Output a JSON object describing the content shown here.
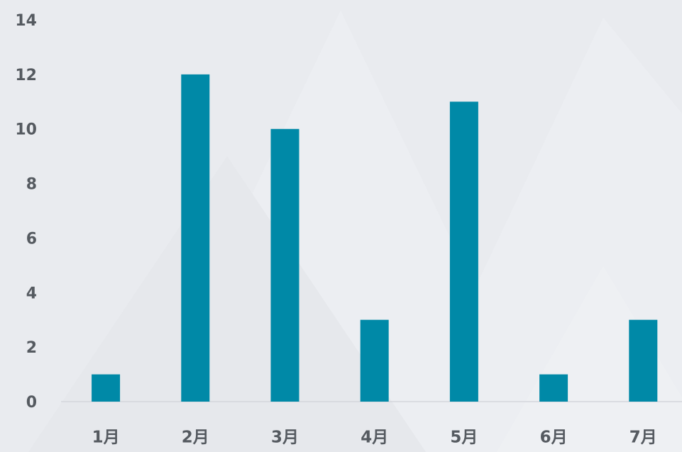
{
  "chart_data": {
    "type": "bar",
    "categories": [
      "1月",
      "2月",
      "3月",
      "4月",
      "5月",
      "6月",
      "7月"
    ],
    "values": [
      1,
      12,
      10,
      3,
      11,
      1,
      3
    ],
    "color": "#0089a7",
    "ylim": [
      0,
      14
    ],
    "yticks": [
      0,
      2,
      4,
      6,
      8,
      10,
      12,
      14
    ],
    "grid": false
  }
}
